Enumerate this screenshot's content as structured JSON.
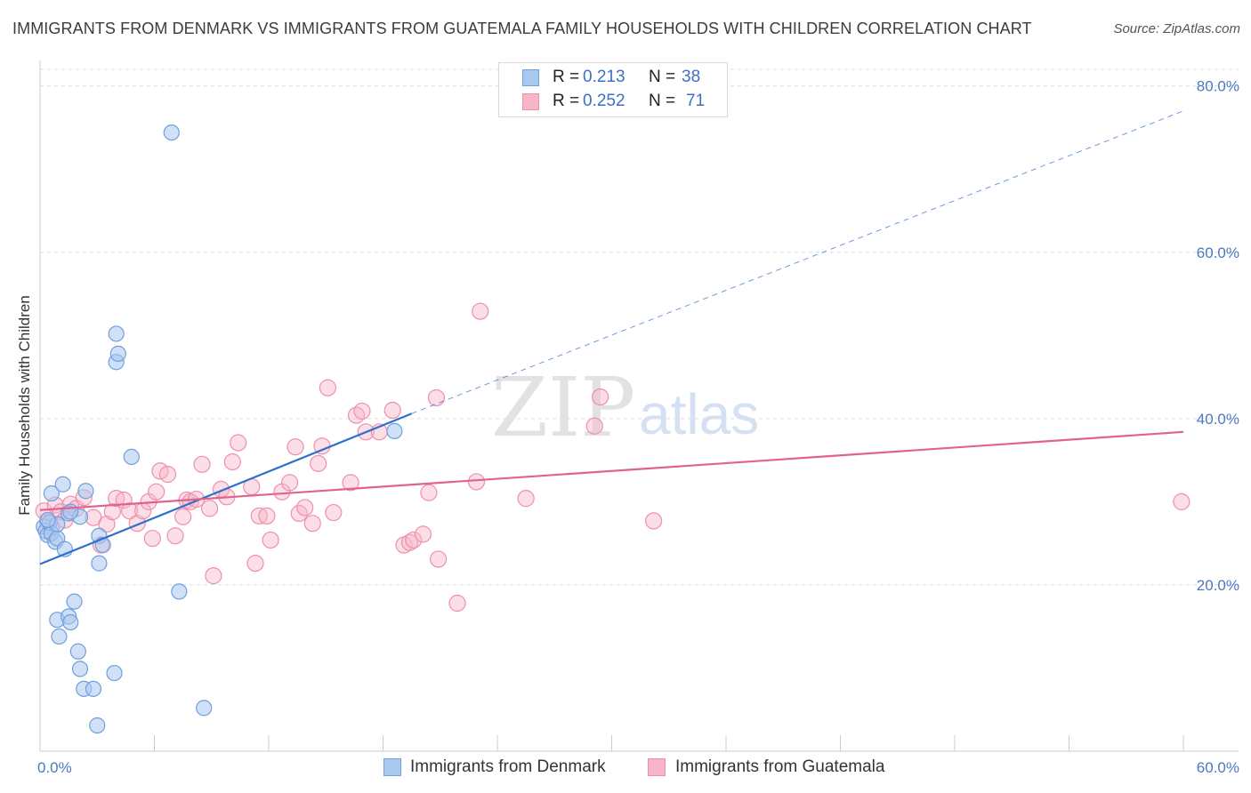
{
  "header": {
    "title": "IMMIGRANTS FROM DENMARK VS IMMIGRANTS FROM GUATEMALA FAMILY HOUSEHOLDS WITH CHILDREN CORRELATION CHART",
    "source": "Source: ZipAtlas.com"
  },
  "watermark": {
    "zip": "ZIP",
    "atlas": "atlas"
  },
  "legend": {
    "r_label": "R =",
    "n_label": "N =",
    "rows": [
      {
        "r": "0.213",
        "n": "38",
        "color": "#a9c8f0"
      },
      {
        "r": "0.252",
        "n": "71",
        "color": "#f7b6c8"
      }
    ]
  },
  "bottom_legend": {
    "denmark": "Immigrants from Denmark",
    "guatemala": "Immigrants from Guatemala"
  },
  "colors": {
    "denmark_fill": "#a9c8f0",
    "denmark_stroke": "#6f9fdc",
    "denmark_line": "#2e6fcc",
    "guatemala_fill": "#f7b6c8",
    "guatemala_stroke": "#ee8fae",
    "guatemala_line": "#e0628e",
    "tick_text": "#4a78c2",
    "grid": "#dcdcdc"
  },
  "chart_data": {
    "type": "scatter",
    "title": "IMMIGRANTS FROM DENMARK VS IMMIGRANTS FROM GUATEMALA FAMILY HOUSEHOLDS WITH CHILDREN CORRELATION CHART",
    "xlabel": "",
    "ylabel": "Family Households with Children",
    "xlim": [
      0,
      60
    ],
    "ylim": [
      0,
      82
    ],
    "x_tick_labels": [
      "0.0%",
      "60.0%"
    ],
    "y_ticks": [
      20,
      40,
      60,
      80
    ],
    "y_tick_labels": [
      "20.0%",
      "40.0%",
      "60.0%",
      "80.0%"
    ],
    "grid": true,
    "legend_position": "top-center",
    "series": [
      {
        "name": "Immigrants from Denmark",
        "r": 0.213,
        "n": 38,
        "trend": {
          "x0": 0,
          "y0": 22.5,
          "x1": 19.5,
          "y1": 40.6,
          "dashed_to_x": 60,
          "dashed_to_y": 77.0
        },
        "points": [
          [
            0.2,
            27.0
          ],
          [
            0.3,
            26.5
          ],
          [
            0.4,
            26.0
          ],
          [
            0.5,
            27.5
          ],
          [
            0.6,
            26.2
          ],
          [
            0.6,
            31.0
          ],
          [
            0.8,
            25.2
          ],
          [
            0.9,
            25.6
          ],
          [
            0.9,
            27.3
          ],
          [
            1.2,
            32.1
          ],
          [
            1.3,
            24.3
          ],
          [
            1.5,
            28.6
          ],
          [
            2.1,
            28.2
          ],
          [
            2.4,
            31.3
          ],
          [
            3.1,
            25.9
          ],
          [
            3.1,
            22.6
          ],
          [
            3.3,
            24.8
          ],
          [
            4.0,
            46.8
          ],
          [
            4.0,
            50.2
          ],
          [
            4.1,
            47.8
          ],
          [
            4.8,
            35.4
          ],
          [
            6.9,
            74.4
          ],
          [
            7.3,
            19.2
          ],
          [
            8.6,
            5.2
          ],
          [
            0.9,
            15.8
          ],
          [
            1.0,
            13.8
          ],
          [
            1.5,
            16.2
          ],
          [
            1.6,
            15.5
          ],
          [
            1.8,
            18.0
          ],
          [
            2.0,
            12.0
          ],
          [
            2.1,
            9.9
          ],
          [
            2.3,
            7.5
          ],
          [
            2.8,
            7.5
          ],
          [
            3.0,
            3.1
          ],
          [
            3.9,
            9.4
          ],
          [
            18.6,
            38.5
          ],
          [
            1.6,
            28.8
          ],
          [
            0.4,
            27.8
          ]
        ]
      },
      {
        "name": "Immigrants from Guatemala",
        "r": 0.252,
        "n": 71,
        "trend": {
          "x0": 0,
          "y0": 29.0,
          "x1": 60,
          "y1": 38.4
        },
        "points": [
          [
            0.2,
            28.9
          ],
          [
            0.4,
            27.5
          ],
          [
            0.6,
            27.0
          ],
          [
            0.8,
            29.6
          ],
          [
            1.1,
            28.8
          ],
          [
            1.3,
            27.8
          ],
          [
            1.6,
            29.7
          ],
          [
            1.9,
            29.2
          ],
          [
            2.3,
            30.5
          ],
          [
            2.8,
            28.1
          ],
          [
            3.2,
            24.8
          ],
          [
            3.5,
            27.3
          ],
          [
            3.8,
            28.8
          ],
          [
            4.0,
            30.4
          ],
          [
            4.4,
            30.2
          ],
          [
            4.7,
            28.9
          ],
          [
            5.1,
            27.4
          ],
          [
            5.4,
            28.9
          ],
          [
            5.7,
            30.0
          ],
          [
            5.9,
            25.6
          ],
          [
            6.1,
            31.2
          ],
          [
            6.3,
            33.7
          ],
          [
            6.7,
            33.3
          ],
          [
            7.1,
            25.9
          ],
          [
            7.5,
            28.2
          ],
          [
            7.7,
            30.2
          ],
          [
            7.9,
            30.0
          ],
          [
            8.2,
            30.3
          ],
          [
            8.5,
            34.5
          ],
          [
            8.9,
            29.2
          ],
          [
            9.1,
            21.1
          ],
          [
            9.5,
            31.5
          ],
          [
            9.8,
            30.6
          ],
          [
            10.1,
            34.8
          ],
          [
            10.4,
            37.1
          ],
          [
            11.1,
            31.8
          ],
          [
            11.3,
            22.6
          ],
          [
            11.5,
            28.3
          ],
          [
            11.9,
            28.3
          ],
          [
            12.1,
            25.4
          ],
          [
            12.7,
            31.2
          ],
          [
            13.1,
            32.3
          ],
          [
            13.4,
            36.6
          ],
          [
            13.6,
            28.6
          ],
          [
            13.9,
            29.3
          ],
          [
            14.3,
            27.4
          ],
          [
            14.6,
            34.6
          ],
          [
            14.8,
            36.7
          ],
          [
            15.1,
            43.7
          ],
          [
            15.4,
            28.7
          ],
          [
            16.3,
            32.3
          ],
          [
            16.6,
            40.4
          ],
          [
            16.9,
            40.9
          ],
          [
            17.1,
            38.4
          ],
          [
            17.8,
            38.4
          ],
          [
            18.5,
            41.0
          ],
          [
            19.1,
            24.8
          ],
          [
            19.4,
            25.1
          ],
          [
            19.6,
            25.4
          ],
          [
            20.1,
            26.1
          ],
          [
            20.4,
            31.1
          ],
          [
            20.8,
            42.5
          ],
          [
            20.9,
            23.1
          ],
          [
            21.9,
            17.8
          ],
          [
            22.9,
            32.4
          ],
          [
            23.1,
            52.9
          ],
          [
            25.5,
            30.4
          ],
          [
            29.1,
            39.1
          ],
          [
            29.4,
            42.6
          ],
          [
            32.2,
            27.7
          ],
          [
            59.9,
            30.0
          ]
        ]
      }
    ]
  }
}
